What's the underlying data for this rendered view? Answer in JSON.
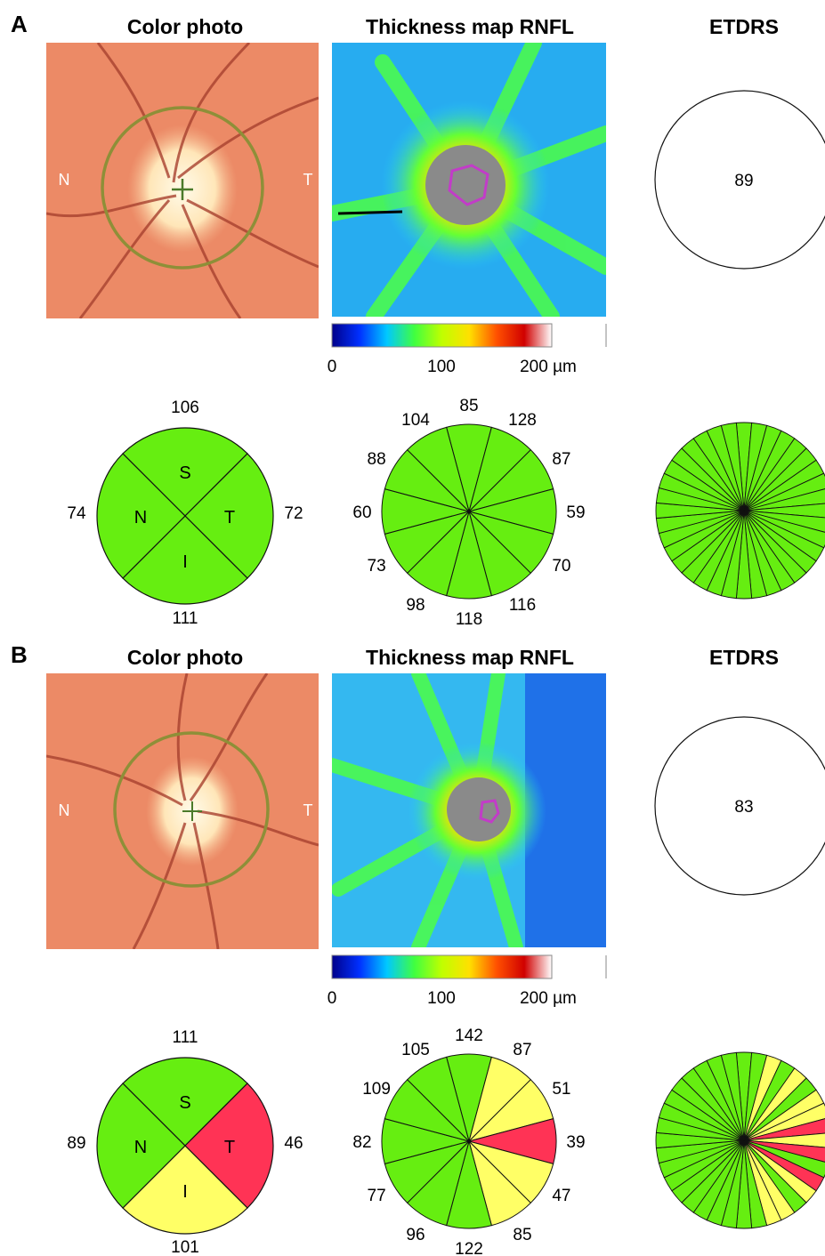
{
  "colors": {
    "normal": "#66ee11",
    "borderline": "#ffff66",
    "abnormal": "#ff3355",
    "fundus": "#ec8a66",
    "disc": "#fff2d0",
    "ring": "#8e8f38",
    "cup_fill": "#8a8a8a",
    "cup_outline": "#c23cc8"
  },
  "colorbar": {
    "gradient": [
      "#00008a",
      "#0030ff",
      "#00c8ff",
      "#40ff40",
      "#c0ff00",
      "#ffe000",
      "#ff5000",
      "#d00000",
      "#ffffff"
    ],
    "ticks": [
      "0",
      "100",
      "200 µm"
    ]
  },
  "panels": [
    {
      "letter": "A",
      "titles": {
        "photo": "Color photo",
        "rnfl": "Thickness map RNFL",
        "etdrs": "ETDRS"
      },
      "photo_labels": {
        "nasal": "N",
        "temporal": "T"
      },
      "etdrs_value": "89",
      "quadrants": {
        "labels": {
          "S": "S",
          "N": "N",
          "T": "T",
          "I": "I"
        },
        "values": {
          "superior": "106",
          "nasal": "74",
          "temporal": "72",
          "inferior": "111"
        },
        "status": {
          "S": "normal",
          "N": "normal",
          "T": "normal",
          "I": "normal"
        }
      },
      "clock_hours": {
        "values": [
          "85",
          "128",
          "87",
          "59",
          "70",
          "116",
          "118",
          "98",
          "73",
          "60",
          "88",
          "104"
        ],
        "status": [
          "normal",
          "normal",
          "normal",
          "normal",
          "normal",
          "normal",
          "normal",
          "normal",
          "normal",
          "normal",
          "normal",
          "normal"
        ]
      },
      "sectors_36": {
        "status": [
          "normal",
          "normal",
          "normal",
          "normal",
          "normal",
          "normal",
          "normal",
          "normal",
          "normal",
          "normal",
          "normal",
          "normal",
          "normal",
          "normal",
          "normal",
          "normal",
          "normal",
          "normal",
          "normal",
          "normal",
          "normal",
          "normal",
          "normal",
          "normal",
          "normal",
          "normal",
          "normal",
          "normal",
          "normal",
          "normal",
          "normal",
          "normal",
          "normal",
          "normal",
          "normal",
          "normal"
        ]
      }
    },
    {
      "letter": "B",
      "titles": {
        "photo": "Color photo",
        "rnfl": "Thickness map RNFL",
        "etdrs": "ETDRS"
      },
      "photo_labels": {
        "nasal": "N",
        "temporal": "T"
      },
      "etdrs_value": "83",
      "quadrants": {
        "labels": {
          "S": "S",
          "N": "N",
          "T": "T",
          "I": "I"
        },
        "values": {
          "superior": "111",
          "nasal": "89",
          "temporal": "46",
          "inferior": "101"
        },
        "status": {
          "S": "normal",
          "N": "normal",
          "T": "abnormal",
          "I": "borderline"
        }
      },
      "clock_hours": {
        "values": [
          "142",
          "87",
          "51",
          "39",
          "47",
          "85",
          "122",
          "96",
          "77",
          "82",
          "109",
          "105"
        ],
        "status": [
          "normal",
          "borderline",
          "borderline",
          "abnormal",
          "borderline",
          "borderline",
          "normal",
          "normal",
          "normal",
          "normal",
          "normal",
          "normal"
        ]
      },
      "sectors_36": {
        "status": [
          "normal",
          "normal",
          "borderline",
          "normal",
          "borderline",
          "normal",
          "borderline",
          "borderline",
          "abnormal",
          "borderline",
          "abnormal",
          "normal",
          "abnormal",
          "borderline",
          "normal",
          "borderline",
          "borderline",
          "normal",
          "normal",
          "normal",
          "normal",
          "normal",
          "normal",
          "normal",
          "normal",
          "normal",
          "normal",
          "normal",
          "normal",
          "normal",
          "normal",
          "normal",
          "normal",
          "normal",
          "normal",
          "normal"
        ]
      }
    }
  ]
}
